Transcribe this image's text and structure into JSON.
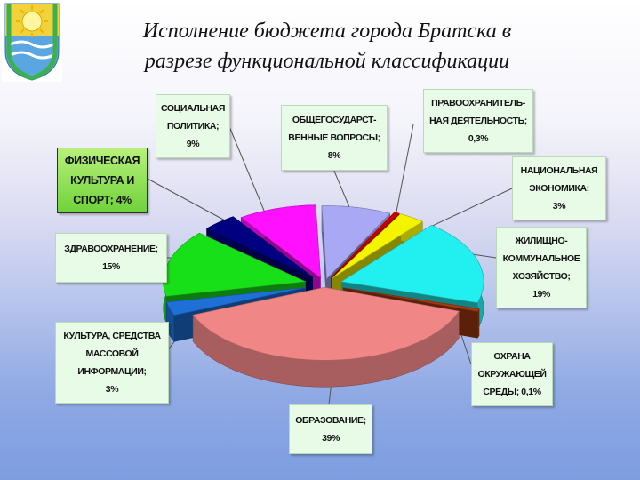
{
  "header": {
    "title_line1": "Исполнение бюджета города Братска в",
    "title_line2": "разрезе функциональной классификации"
  },
  "chart_data": {
    "type": "pie",
    "title": "Исполнение бюджета города Братска в разрезе функциональной классификации",
    "series": [
      {
        "name": "ОБЩЕГОСУДАРСТВЕННЫЕ ВОПРОСЫ",
        "value": 8,
        "label_lines": [
          "ОБЩЕГОСУДАРСТ-",
          "ВЕННЫЕ ВОПРОСЫ;",
          "8%"
        ],
        "color": "#a8a8f4"
      },
      {
        "name": "ПРАВООХРАНИТЕЛЬНАЯ ДЕЯТЕЛЬНОСТЬ",
        "value": 0.3,
        "label_lines": [
          "ПРАВООХРАНИТЕЛЬ-",
          "НАЯ ДЕЯТЕЛЬНОСТЬ;",
          "0,3%"
        ],
        "color": "#cc0000"
      },
      {
        "name": "НАЦИОНАЛЬНАЯ ЭКОНОМИКА",
        "value": 3,
        "label_lines": [
          "НАЦИОНАЛЬНАЯ",
          "ЭКОНОМИКА;",
          "3%"
        ],
        "color": "#f4f400"
      },
      {
        "name": "ЖИЛИЩНО-КОММУНАЛЬНОЕ ХОЗЯЙСТВО",
        "value": 19,
        "label_lines": [
          "ЖИЛИЩНО-",
          "КОММУНАЛЬНОЕ",
          "ХОЗЯЙСТВО;",
          "19%"
        ],
        "color": "#22f0f0"
      },
      {
        "name": "ОХРАНА ОКРУЖАЮЩЕЙ СРЕДЫ",
        "value": 0.1,
        "label_lines": [
          "ОХРАНА",
          "ОКРУЖАЮЩЕЙ",
          "СРЕДЫ; 0,1%"
        ],
        "color": "#a43a10"
      },
      {
        "name": "ОБРАЗОВАНИЕ",
        "value": 39,
        "label_lines": [
          "ОБРАЗОВАНИЕ;",
          "39%"
        ],
        "color": "#f08686"
      },
      {
        "name": "КУЛЬТУРА, СРЕДСТВА МАССОВОЙ ИНФОРМАЦИИ",
        "value": 3,
        "label_lines": [
          "КУЛЬТУРА, СРЕДСТВА",
          "МАССОВОЙ",
          "ИНФОРМАЦИИ;",
          "3%"
        ],
        "color": "#1e6fd6"
      },
      {
        "name": "ЗДРАВООХРАНЕНИЕ",
        "value": 15,
        "label_lines": [
          "ЗДРАВООХРАНЕНИЕ;",
          "15%"
        ],
        "color": "#18e018"
      },
      {
        "name": "ФИЗИЧЕСКАЯ КУЛЬТУРА И СПОРТ",
        "value": 4,
        "label_lines": [
          "ФИЗИЧЕСКАЯ",
          "КУЛЬТУРА И",
          "СПОРТ; 4%"
        ],
        "color": "#000080"
      },
      {
        "name": "СОЦИАЛЬНАЯ ПОЛИТИКА",
        "value": 9,
        "label_lines": [
          "СОЦИАЛЬНАЯ",
          "ПОЛИТИКА;",
          "9%"
        ],
        "color": "#ff10ff"
      }
    ]
  }
}
